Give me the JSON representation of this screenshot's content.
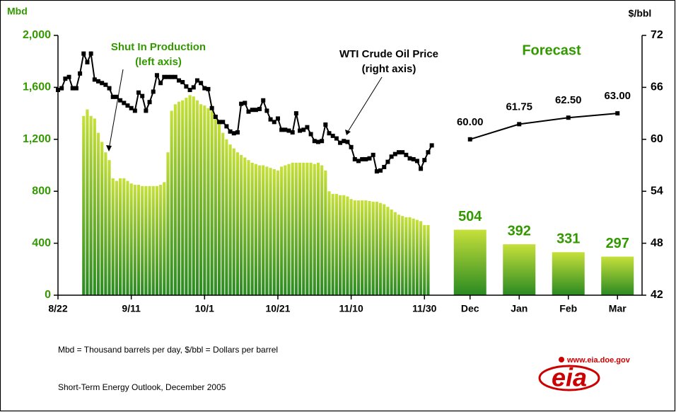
{
  "chart_data": [
    {
      "type": "bar",
      "y_label": "Mbd",
      "y2_label": "$/bbl",
      "xlim": [
        0,
        104
      ],
      "xticks": [
        {
          "value": 0,
          "label": "8/22"
        },
        {
          "value": 20,
          "label": "9/11"
        },
        {
          "value": 40,
          "label": "10/1"
        },
        {
          "value": 60,
          "label": "10/21"
        },
        {
          "value": 80,
          "label": "11/10"
        },
        {
          "value": 100,
          "label": "11/30"
        }
      ],
      "ylim": [
        0,
        2000
      ],
      "yticks": [
        0,
        400,
        800,
        {
          "value": 1200,
          "label": "1,200"
        },
        {
          "value": 1600,
          "label": "1,600"
        },
        {
          "value": 2000,
          "label": "2,000"
        }
      ],
      "y2lim": [
        42,
        72
      ],
      "y2ticks": [
        42,
        48,
        54,
        60,
        66,
        72
      ],
      "annotations": [
        {
          "lines": [
            "Shut In Production",
            "(left axis)"
          ],
          "color": "#339900"
        },
        {
          "lines": [
            "WTI Crude Oil Price",
            "(right axis)"
          ],
          "color": "#000000"
        }
      ],
      "series": [
        {
          "type": "bar",
          "gradient": [
            "#c6e03a",
            "#2a8a22"
          ],
          "x": [
            7,
            8,
            9,
            10,
            11,
            12,
            13,
            14,
            15,
            16,
            17,
            18,
            19,
            20,
            21,
            22,
            23,
            24,
            25,
            26,
            27,
            28,
            29,
            30,
            31,
            32,
            33,
            34,
            35,
            36,
            37,
            38,
            39,
            40,
            41,
            42,
            43,
            44,
            45,
            46,
            47,
            48,
            49,
            50,
            51,
            52,
            53,
            54,
            55,
            56,
            57,
            58,
            59,
            60,
            61,
            62,
            63,
            64,
            65,
            66,
            67,
            68,
            69,
            70,
            71,
            72,
            73,
            74,
            75,
            76,
            77,
            78,
            79,
            80,
            81,
            82,
            83,
            84,
            85,
            86,
            87,
            88,
            89,
            90,
            91,
            92,
            93,
            94,
            95,
            96,
            97,
            98,
            99,
            100,
            101
          ],
          "values": [
            1380,
            1430,
            1380,
            1360,
            1250,
            1180,
            1100,
            1040,
            900,
            880,
            900,
            900,
            880,
            860,
            850,
            850,
            840,
            840,
            840,
            840,
            840,
            850,
            870,
            1100,
            1420,
            1470,
            1490,
            1500,
            1520,
            1540,
            1530,
            1500,
            1470,
            1460,
            1440,
            1420,
            1380,
            1320,
            1250,
            1200,
            1160,
            1130,
            1100,
            1080,
            1060,
            1040,
            1020,
            1010,
            1000,
            1000,
            990,
            980,
            970,
            960,
            990,
            1000,
            1010,
            1020,
            1020,
            1020,
            1020,
            1020,
            1020,
            1010,
            1020,
            1000,
            960,
            800,
            780,
            780,
            770,
            770,
            760,
            740,
            730,
            730,
            730,
            730,
            725,
            720,
            720,
            710,
            700,
            680,
            660,
            640,
            620,
            610,
            600,
            600,
            590,
            580,
            570,
            540,
            540
          ]
        },
        {
          "type": "line",
          "axis": "y2",
          "color": "#000000",
          "x": [
            0,
            1,
            2,
            3,
            4,
            5,
            6,
            7,
            8,
            9,
            10,
            11,
            12,
            13,
            14,
            15,
            16,
            17,
            18,
            19,
            20,
            21,
            22,
            23,
            24,
            25,
            26,
            27,
            28,
            29,
            30,
            31,
            32,
            33,
            34,
            35,
            36,
            37,
            38,
            39,
            40,
            41,
            42,
            43,
            44,
            45,
            46,
            47,
            48,
            49,
            50,
            51,
            52,
            53,
            54,
            55,
            56,
            57,
            58,
            59,
            60,
            61,
            62,
            63,
            64,
            65,
            66,
            67,
            68,
            69,
            70,
            71,
            72,
            73,
            74,
            75,
            76,
            77,
            78,
            79,
            80,
            81,
            82,
            83,
            84,
            85,
            86,
            87,
            88,
            89,
            90,
            91,
            92,
            93,
            94,
            95,
            96,
            97,
            98,
            99,
            100,
            101,
            102
          ],
          "values": [
            65.7,
            65.9,
            67.0,
            67.2,
            65.9,
            65.9,
            67.6,
            69.9,
            68.9,
            69.9,
            66.9,
            66.7,
            66.5,
            66.3,
            65.9,
            64.9,
            64.9,
            64.5,
            64.2,
            63.9,
            63.6,
            63.3,
            65.4,
            65.0,
            63.3,
            64.3,
            65.5,
            67.4,
            66.5,
            67.2,
            67.2,
            67.2,
            67.2,
            66.8,
            66.6,
            66.1,
            65.7,
            66.0,
            66.8,
            66.5,
            65.9,
            65.8,
            63.6,
            62.6,
            62.0,
            62.0,
            61.5,
            60.9,
            60.7,
            60.8,
            64.1,
            64.2,
            63.2,
            63.4,
            63.4,
            63.5,
            64.5,
            63.3,
            62.3,
            62.0,
            62.4,
            61.1,
            61.1,
            61.0,
            60.8,
            63.0,
            61.0,
            61.1,
            61.4,
            60.6,
            59.8,
            59.7,
            59.8,
            61.7,
            60.7,
            60.4,
            60.1,
            59.6,
            59.8,
            59.7,
            59.1,
            57.7,
            57.5,
            57.7,
            57.7,
            57.8,
            58.2,
            56.3,
            56.4,
            56.8,
            57.4,
            58.0,
            58.3,
            58.5,
            58.5,
            58.2,
            57.8,
            57.7,
            57.5,
            56.6,
            57.6,
            58.5,
            59.3
          ]
        }
      ]
    },
    {
      "type": "bar",
      "title": "Forecast",
      "categories": [
        "Dec",
        "Jan",
        "Feb",
        "Mar"
      ],
      "ylim": [
        0,
        2000
      ],
      "y2lim": [
        42,
        72
      ],
      "series": [
        {
          "type": "bar",
          "gradient": [
            "#c6e03a",
            "#2a8a22"
          ],
          "label_color": "#339900",
          "values": [
            504,
            392,
            331,
            297
          ]
        },
        {
          "type": "line",
          "axis": "y2",
          "color": "#000000",
          "values": [
            60,
            61.75,
            62.5,
            63
          ],
          "value_labels": [
            "60.00",
            "61.75",
            "62.50",
            "63.00"
          ]
        }
      ]
    }
  ],
  "notes": "Mbd = Thousand barrels per day, $/bbl = Dollars per barrel",
  "source": "Short-Term Energy Outlook, December 2005",
  "logo": {
    "text": "eia",
    "url": "www.eia.doe.gov"
  }
}
